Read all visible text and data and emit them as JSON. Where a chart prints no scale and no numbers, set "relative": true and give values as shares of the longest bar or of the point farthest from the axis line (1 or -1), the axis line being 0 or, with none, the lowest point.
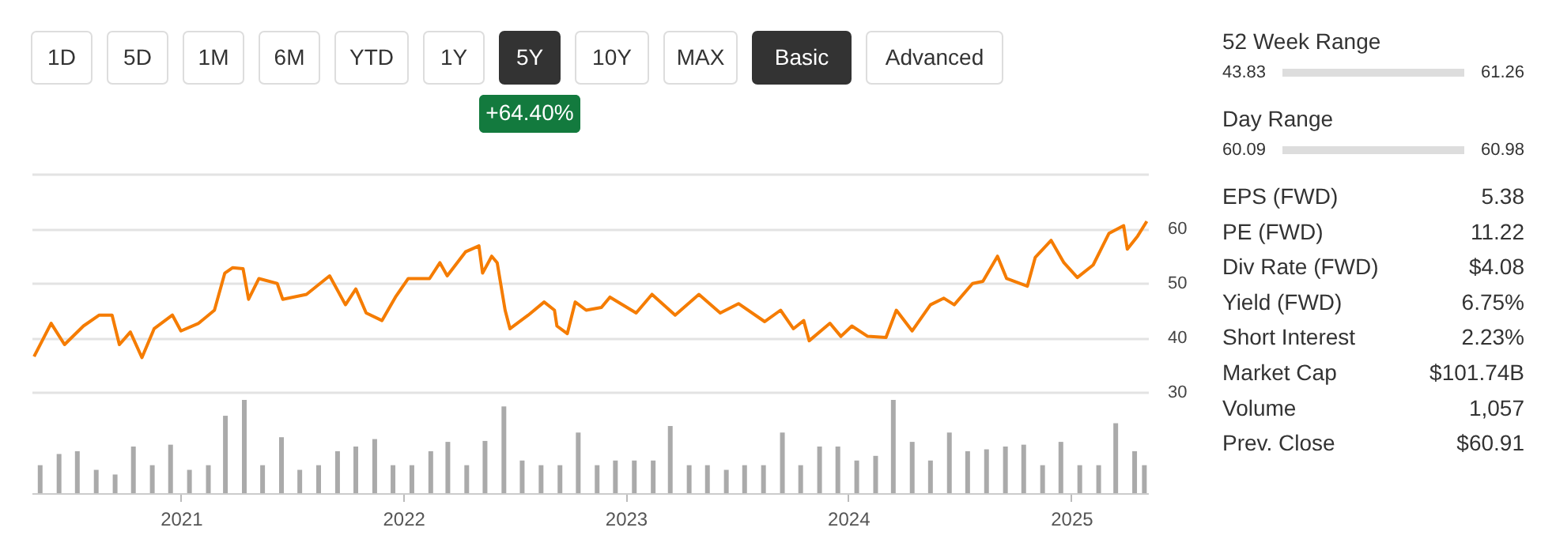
{
  "chart_data": [
    {
      "type": "other",
      "categories": [
        "1D",
        "5D",
        "1M",
        "6M",
        "YTD",
        "1Y",
        "5Y",
        "10Y",
        "MAX",
        "Basic",
        "Advanced"
      ],
      "colors": [
        "#ffffff",
        "#ffffff",
        "#ffffff",
        "#ffffff",
        "#ffffff",
        "#ffffff",
        "#333333",
        "#ffffff",
        "#ffffff",
        "#333333",
        "#ffffff"
      ],
      "annotations": [
        {
          "text": "+64.40%",
          "x": "5Y"
        }
      ]
    },
    {
      "type": "line",
      "x": [
        "2020-05-05",
        "2020-06-02",
        "2020-06-24",
        "2020-07-25",
        "2020-08-20",
        "2020-09-10",
        "2020-09-22",
        "2020-10-10",
        "2020-10-29",
        "2020-11-18",
        "2020-12-18",
        "2021-01-01",
        "2021-01-30",
        "2021-02-25",
        "2021-03-14",
        "2021-03-27",
        "2021-04-13",
        "2021-04-22",
        "2021-05-09",
        "2021-06-08",
        "2021-06-17",
        "2021-07-26",
        "2021-09-02",
        "2021-09-28",
        "2021-10-15",
        "2021-11-01",
        "2021-11-27",
        "2021-12-19",
        "2022-01-09",
        "2022-02-13",
        "2022-03-02",
        "2022-03-14",
        "2022-04-13",
        "2022-05-05",
        "2022-05-11",
        "2022-05-26",
        "2022-06-04",
        "2022-06-17",
        "2022-06-25",
        "2022-07-25",
        "2022-08-20",
        "2022-09-06",
        "2022-09-10",
        "2022-09-27",
        "2022-10-10",
        "2022-10-28",
        "2022-11-22",
        "2022-12-06",
        "2023-01-18",
        "2023-02-13",
        "2023-03-23",
        "2023-05-01",
        "2023-06-05",
        "2023-07-05",
        "2023-08-17",
        "2023-09-12",
        "2023-10-03",
        "2023-10-20",
        "2023-10-29",
        "2023-12-02",
        "2023-12-20",
        "2024-01-07",
        "2024-02-02",
        "2024-03-03",
        "2024-03-20",
        "2024-04-15",
        "2024-05-15",
        "2024-06-06",
        "2024-06-23",
        "2024-07-23",
        "2024-08-09",
        "2024-09-02",
        "2024-09-17",
        "2024-10-21",
        "2024-11-03",
        "2024-11-29",
        "2024-12-20",
        "2025-01-11",
        "2025-02-06",
        "2025-03-04",
        "2025-03-28",
        "2025-04-03",
        "2025-04-20",
        "2025-05-05"
      ],
      "series": [
        {
          "color": "#f57c00",
          "values": [
            36.5,
            42.6,
            38.7,
            42.1,
            44.1,
            44.1,
            38.7,
            41.0,
            36.3,
            41.6,
            44.1,
            41.2,
            42.6,
            45.0,
            51.8,
            52.8,
            52.6,
            47.0,
            50.8,
            49.9,
            47.0,
            47.9,
            51.3,
            46.0,
            48.9,
            44.5,
            43.1,
            47.4,
            50.8,
            50.8,
            53.7,
            51.3,
            55.7,
            56.8,
            51.8,
            54.9,
            53.7,
            45.0,
            41.6,
            44.1,
            46.5,
            45.0,
            42.1,
            40.7,
            46.5,
            45.0,
            45.5,
            47.4,
            44.5,
            47.9,
            44.1,
            47.9,
            44.5,
            46.2,
            42.9,
            45.0,
            41.6,
            43.1,
            39.4,
            42.6,
            40.2,
            42.1,
            40.2,
            40.0,
            45.0,
            41.2,
            46.0,
            47.2,
            46.0,
            49.9,
            50.3,
            54.9,
            50.8,
            49.4,
            54.7,
            57.8,
            53.7,
            51.0,
            53.3,
            59.1,
            60.5,
            56.2,
            58.6,
            61.3
          ]
        }
      ],
      "xlim": [
        "2020-05-01",
        "2025-05-07"
      ],
      "ylim": [
        30,
        70
      ],
      "yticks": [
        30,
        40,
        50,
        60,
        {
          "value": 70,
          "label": null
        }
      ],
      "grid": "y",
      "tick_labels": "y",
      "line_style": "solid",
      "marker": "none"
    },
    {
      "type": "bar",
      "relative": true,
      "x": [
        "2020-05-15",
        "2020-06-15",
        "2020-07-15",
        "2020-08-15",
        "2020-09-15",
        "2020-10-15",
        "2020-11-15",
        "2020-12-15",
        "2021-01-15",
        "2021-02-15",
        "2021-03-15",
        "2021-04-15",
        "2021-05-15",
        "2021-06-15",
        "2021-07-15",
        "2021-08-15",
        "2021-09-15",
        "2021-10-15",
        "2021-11-15",
        "2021-12-15",
        "2022-01-15",
        "2022-02-15",
        "2022-03-15",
        "2022-04-15",
        "2022-05-15",
        "2022-06-15",
        "2022-07-15",
        "2022-08-15",
        "2022-09-15",
        "2022-10-15",
        "2022-11-15",
        "2022-12-15",
        "2023-01-15",
        "2023-02-15",
        "2023-03-15",
        "2023-04-15",
        "2023-05-15",
        "2023-06-15",
        "2023-07-15",
        "2023-08-15",
        "2023-09-15",
        "2023-10-15",
        "2023-11-15",
        "2023-12-15",
        "2024-01-15",
        "2024-02-15",
        "2024-03-15",
        "2024-04-15",
        "2024-05-15",
        "2024-06-15",
        "2024-07-15",
        "2024-08-15",
        "2024-09-15",
        "2024-10-15",
        "2024-11-15",
        "2024-12-15",
        "2025-01-15",
        "2025-02-15",
        "2025-03-15",
        "2025-04-15",
        "2025-05-01"
      ],
      "series": [
        {
          "color": "#aaaaaa",
          "values": [
            0.3,
            0.42,
            0.45,
            0.25,
            0.2,
            0.5,
            0.3,
            0.52,
            0.25,
            0.3,
            0.83,
            1.0,
            0.3,
            0.6,
            0.25,
            0.3,
            0.45,
            0.5,
            0.58,
            0.3,
            0.3,
            0.45,
            0.55,
            0.3,
            0.56,
            0.93,
            0.35,
            0.3,
            0.3,
            0.65,
            0.3,
            0.35,
            0.35,
            0.35,
            0.72,
            0.3,
            0.3,
            0.25,
            0.3,
            0.3,
            0.65,
            0.3,
            0.5,
            0.5,
            0.35,
            0.4,
            1.0,
            0.55,
            0.35,
            0.65,
            0.45,
            0.47,
            0.5,
            0.52,
            0.3,
            0.55,
            0.3,
            0.3,
            0.75,
            0.45,
            0.3
          ]
        }
      ],
      "xlim": [
        "2020-05-01",
        "2025-05-07"
      ],
      "xticks": [
        {
          "value": "2021-01-01",
          "label": "2021"
        },
        {
          "value": "2022-01-01",
          "label": "2022"
        },
        {
          "value": "2023-01-01",
          "label": "2023"
        },
        {
          "value": "2024-01-01",
          "label": "2024"
        },
        {
          "value": "2025-01-01",
          "label": "2025"
        }
      ],
      "tick_labels": "x",
      "grid": false
    },
    {
      "type": "other",
      "categories": [
        "52 Week Range",
        "Day Range",
        "EPS (FWD)",
        "PE (FWD)",
        "Div Rate (FWD)",
        "Yield (FWD)",
        "Short Interest",
        "Market Cap",
        "Volume",
        "Prev. Close"
      ],
      "annotations": [
        "43.83",
        "61.26",
        "60.09",
        "60.98",
        "5.38",
        "11.22",
        "$4.08",
        "6.75%",
        "2.23%",
        "$101.74B",
        "1,057",
        "$60.91"
      ]
    }
  ]
}
